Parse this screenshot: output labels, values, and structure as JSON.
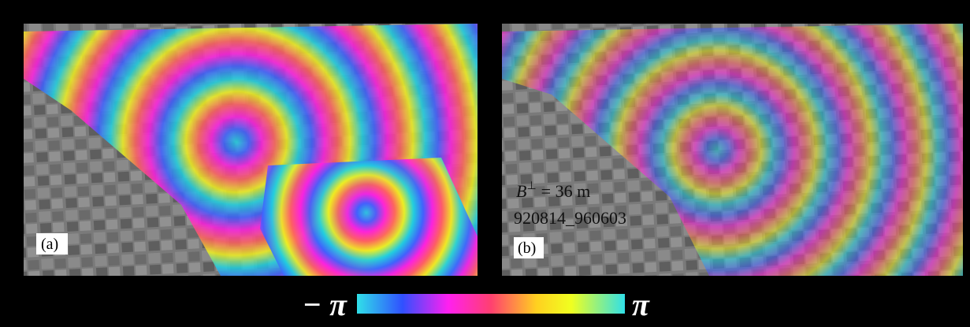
{
  "panels": [
    {
      "label": "(a)"
    },
    {
      "label": "(b)",
      "baseline": {
        "symbol": "B",
        "superscript": "⊥",
        "value": "= 36 m"
      },
      "pair": "920814_960603"
    }
  ],
  "colorbar": {
    "min_label": "− π",
    "max_label": "π"
  }
}
